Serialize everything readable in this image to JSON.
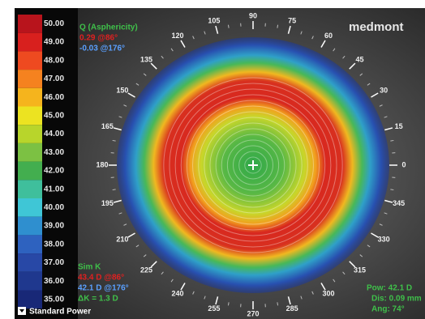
{
  "brand": "medmont",
  "scale": {
    "labels": [
      "50.00",
      "49.00",
      "48.00",
      "47.00",
      "46.00",
      "45.00",
      "44.00",
      "43.00",
      "42.00",
      "41.00",
      "40.00",
      "39.00",
      "38.00",
      "37.00",
      "36.00",
      "35.00"
    ],
    "colors": [
      "#b8141c",
      "#d8201e",
      "#ee4a20",
      "#f5821f",
      "#f5b41d",
      "#ece321",
      "#b8d52b",
      "#7cc143",
      "#43ae4f",
      "#3fbf9c",
      "#3fc6d6",
      "#2f8fcf",
      "#2e62bf",
      "#2848a6",
      "#1f388e",
      "#182877"
    ],
    "mode": "Standard Power"
  },
  "q_asphericity": {
    "title": "Q (Asphericity)",
    "steep": "0.29 @86°",
    "flat": "-0.03 @176°"
  },
  "sim_k": {
    "title": "Sim K",
    "steep": "43.4 D @86°",
    "flat": "42.1 D @176°",
    "delta": "ΔK = 1.3 D"
  },
  "cursor": {
    "pow": "Pow: 42.1 D",
    "dis": "Dis: 0.09 mm",
    "ang": "Ang: 74°"
  },
  "angle_labels": [
    0,
    15,
    30,
    45,
    60,
    75,
    90,
    105,
    120,
    135,
    150,
    165,
    180,
    195,
    210,
    225,
    240,
    255,
    270,
    285,
    300,
    315,
    330,
    345
  ]
}
